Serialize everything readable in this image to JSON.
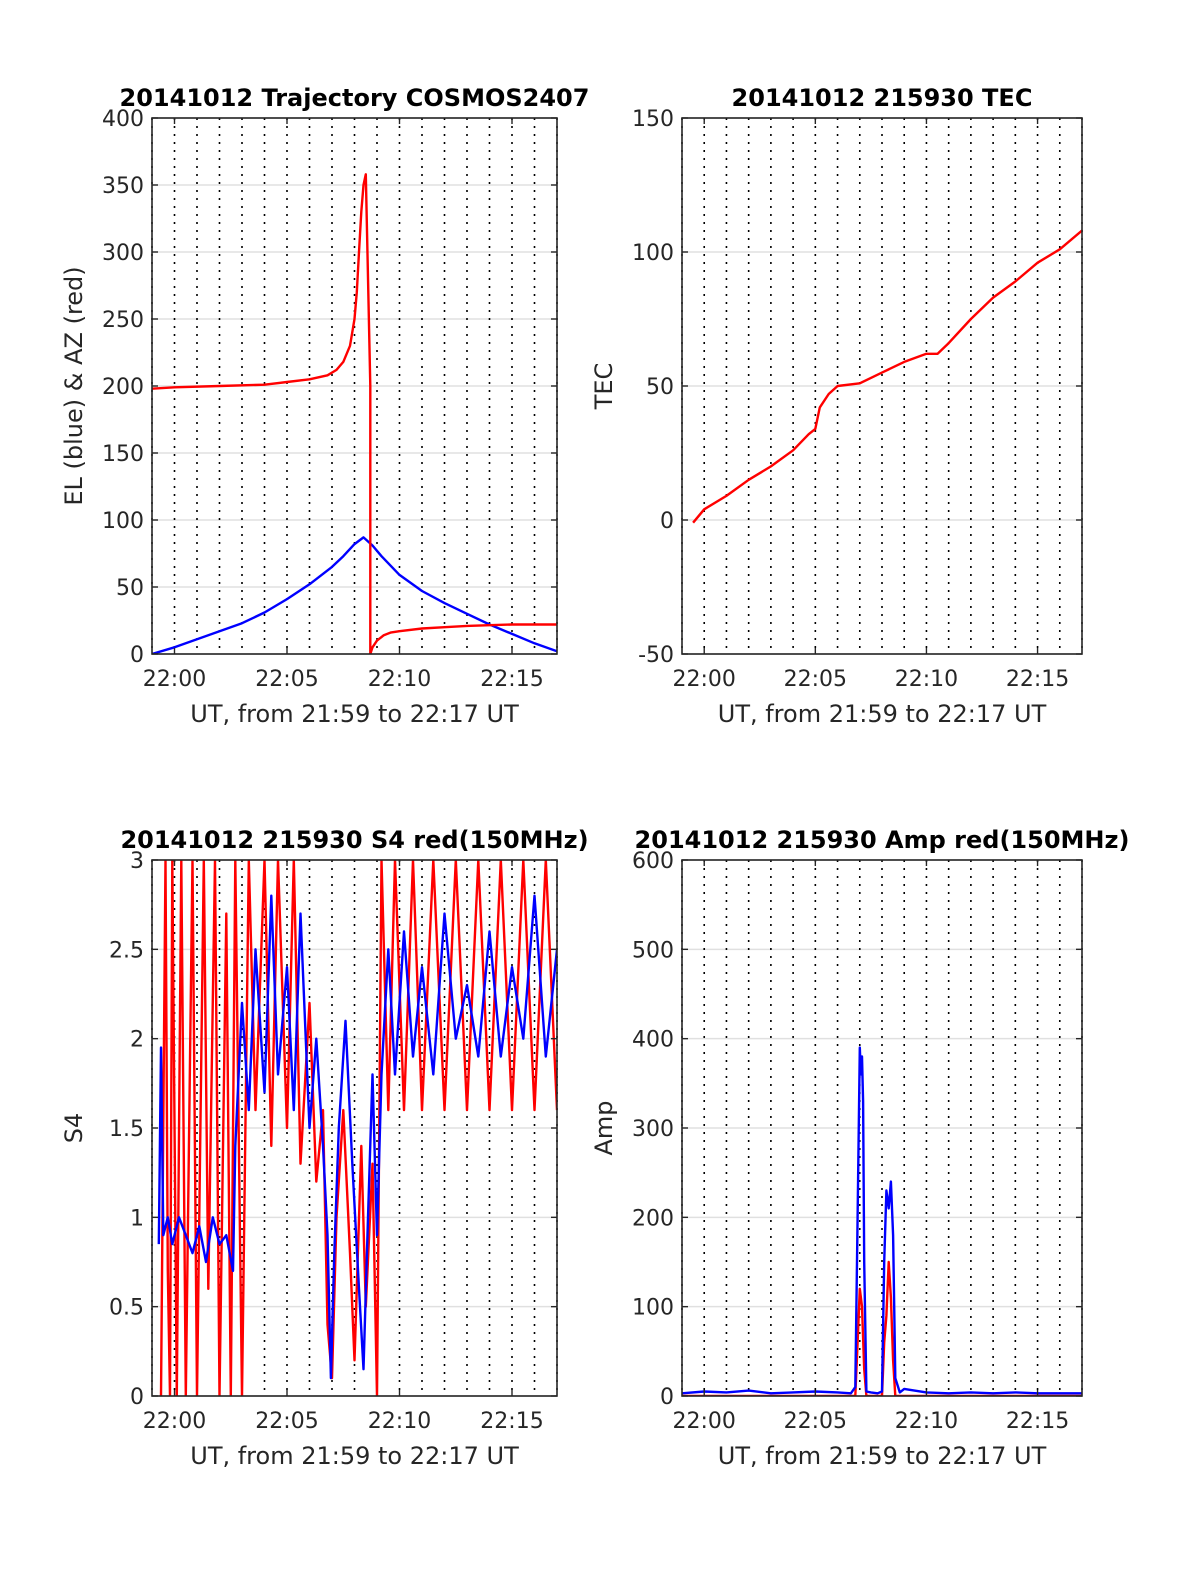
{
  "chart_data": [
    {
      "type": "line",
      "title": "20141012 Trajectory COSMOS2407",
      "xlabel": "UT, from 21:59 to 22:17 UT",
      "ylabel": "EL (blue) & AZ (red)",
      "x_unit": "minutes after 22:00 UT",
      "xlim": [
        -1,
        17
      ],
      "ylim": [
        0,
        400
      ],
      "x_tick_values": [
        0,
        5,
        10,
        15
      ],
      "x_tick_labels": [
        "22:00",
        "22:05",
        "22:10",
        "22:15"
      ],
      "y_ticks": [
        0,
        50,
        100,
        150,
        200,
        250,
        300,
        350,
        400
      ],
      "grid": true,
      "series": [
        {
          "color": "#0000ff",
          "x": [
            -1,
            0,
            1,
            2,
            3,
            4,
            5,
            6,
            7,
            7.5,
            8,
            8.4,
            8.8,
            9.2,
            9.6,
            10,
            11,
            12,
            13,
            14,
            15,
            16,
            17
          ],
          "y": [
            0,
            5,
            11,
            17,
            23,
            31,
            41,
            52,
            65,
            73,
            82,
            87,
            81,
            73,
            66,
            59,
            47,
            38,
            30,
            22,
            15,
            8,
            2
          ]
        },
        {
          "color": "#ff0000",
          "x": [
            -1,
            0,
            2,
            4,
            5,
            6,
            6.8,
            7.2,
            7.5,
            7.8,
            8.0,
            8.1,
            8.2,
            8.3,
            8.4,
            8.5,
            8.7,
            8.7,
            8.8,
            9.0,
            9.3,
            9.6,
            10,
            11,
            12,
            13,
            14,
            15,
            16,
            17
          ],
          "y": [
            198,
            199,
            200,
            201,
            203,
            205,
            208,
            212,
            218,
            230,
            250,
            270,
            300,
            330,
            350,
            358,
            200,
            0,
            5,
            10,
            14,
            16,
            17,
            19,
            20,
            21,
            21.5,
            22,
            22,
            22
          ]
        }
      ]
    },
    {
      "type": "line",
      "title": "20141012 215930 TEC",
      "xlabel": "UT, from 21:59 to 22:17 UT",
      "ylabel": "TEC",
      "x_unit": "minutes after 22:00 UT",
      "xlim": [
        -1,
        17
      ],
      "ylim": [
        -50,
        150
      ],
      "x_tick_values": [
        0,
        5,
        10,
        15
      ],
      "x_tick_labels": [
        "22:00",
        "22:05",
        "22:10",
        "22:15"
      ],
      "y_ticks": [
        -50,
        0,
        50,
        100,
        150
      ],
      "grid": true,
      "series": [
        {
          "color": "#ff0000",
          "x": [
            -0.5,
            0,
            1,
            2,
            3,
            4,
            4.7,
            5.0,
            5.2,
            5.6,
            6.0,
            7,
            8,
            9,
            10,
            10.5,
            11,
            12,
            13,
            14,
            15,
            16,
            17
          ],
          "y": [
            -1,
            4,
            9,
            15,
            20,
            26,
            32,
            34,
            42,
            47,
            50,
            51,
            55,
            59,
            62,
            62,
            66,
            75,
            83,
            89,
            96,
            101,
            108
          ]
        }
      ]
    },
    {
      "type": "line",
      "title": "20141012 215930 S4 red(150MHz)",
      "xlabel": "UT, from 21:59 to 22:17 UT",
      "ylabel": "S4",
      "x_unit": "minutes after 22:00 UT",
      "xlim": [
        -1,
        17
      ],
      "ylim": [
        0,
        3
      ],
      "x_tick_values": [
        0,
        5,
        10,
        15
      ],
      "x_tick_labels": [
        "22:00",
        "22:05",
        "22:10",
        "22:15"
      ],
      "y_ticks": [
        0,
        0.5,
        1,
        1.5,
        2,
        2.5,
        3
      ],
      "grid": true,
      "series": [
        {
          "color": "#ff0000",
          "x": [
            -0.6,
            -0.4,
            -0.3,
            -0.2,
            -0.1,
            0.1,
            0.3,
            0.5,
            0.8,
            1.0,
            1.3,
            1.5,
            1.8,
            2.0,
            2.3,
            2.5,
            2.7,
            3.0,
            3.3,
            3.6,
            4.0,
            4.3,
            4.6,
            5.0,
            5.3,
            5.6,
            6.0,
            6.3,
            6.6,
            6.8,
            7.0,
            7.2,
            7.5,
            7.8,
            8.0,
            8.3,
            8.5,
            8.8,
            9.0,
            9.2,
            9.5,
            9.8,
            10.2,
            10.6,
            11.0,
            11.5,
            12.0,
            12.5,
            13.0,
            13.5,
            14.0,
            14.5,
            15.0,
            15.5,
            16.0,
            16.5,
            17.0
          ],
          "y": [
            0,
            3,
            0.7,
            0,
            3,
            0,
            3,
            0,
            3,
            0,
            3,
            0.6,
            3,
            0,
            2.7,
            0,
            3,
            0,
            3,
            1.6,
            3,
            1.4,
            3,
            1.5,
            3,
            1.3,
            2.2,
            1.2,
            1.6,
            0.4,
            0.1,
            1.0,
            1.6,
            0.8,
            0.2,
            1.4,
            0.5,
            1.3,
            0,
            3,
            1.6,
            3,
            1.6,
            3,
            1.6,
            3,
            1.6,
            3,
            1.6,
            3,
            1.6,
            3,
            1.6,
            3,
            1.6,
            3,
            1.6
          ]
        },
        {
          "color": "#0000ff",
          "x": [
            -0.7,
            -0.6,
            -0.5,
            -0.3,
            -0.1,
            0.2,
            0.5,
            0.8,
            1.1,
            1.4,
            1.7,
            2.0,
            2.3,
            2.6,
            2.7,
            3.0,
            3.3,
            3.6,
            4.0,
            4.3,
            4.6,
            5.0,
            5.3,
            5.6,
            6.0,
            6.3,
            6.6,
            6.8,
            6.95,
            7.1,
            7.3,
            7.6,
            7.9,
            8.2,
            8.4,
            8.6,
            8.8,
            9.0,
            9.2,
            9.5,
            9.8,
            10.2,
            10.6,
            11.0,
            11.5,
            12.0,
            12.5,
            13.0,
            13.5,
            14.0,
            14.5,
            15.0,
            15.5,
            16.0,
            16.5,
            17.0
          ],
          "y": [
            0.85,
            1.95,
            0.9,
            1.0,
            0.85,
            1.0,
            0.9,
            0.8,
            0.95,
            0.75,
            1.0,
            0.85,
            0.9,
            0.7,
            1.4,
            2.2,
            1.6,
            2.5,
            1.7,
            2.8,
            1.8,
            2.4,
            1.6,
            2.7,
            1.5,
            2.0,
            1.4,
            0.9,
            0.1,
            0.8,
            1.5,
            2.1,
            1.3,
            0.6,
            0.15,
            1.0,
            1.8,
            0.9,
            1.8,
            2.5,
            1.8,
            2.6,
            1.9,
            2.4,
            1.8,
            2.7,
            2.0,
            2.3,
            1.9,
            2.6,
            1.9,
            2.4,
            2.0,
            2.8,
            1.9,
            2.5
          ]
        }
      ]
    },
    {
      "type": "line",
      "title": "20141012 215930 Amp red(150MHz)",
      "xlabel": "UT, from 21:59 to 22:17 UT",
      "ylabel": "Amp",
      "x_unit": "minutes after 22:00 UT",
      "xlim": [
        -1,
        17
      ],
      "ylim": [
        0,
        600
      ],
      "x_tick_values": [
        0,
        5,
        10,
        15
      ],
      "x_tick_labels": [
        "22:00",
        "22:05",
        "22:10",
        "22:15"
      ],
      "y_ticks": [
        0,
        100,
        200,
        300,
        400,
        500,
        600
      ],
      "grid": true,
      "series": [
        {
          "color": "#ff0000",
          "x": [
            -1,
            6.8,
            6.9,
            7.0,
            7.1,
            7.2,
            7.3,
            7.5,
            8.0,
            8.1,
            8.2,
            8.3,
            8.4,
            8.5,
            8.6,
            9.0,
            17
          ],
          "y": [
            0,
            0,
            60,
            120,
            100,
            30,
            0,
            0,
            0,
            60,
            90,
            150,
            110,
            40,
            0,
            0,
            0
          ]
        },
        {
          "color": "#0000ff",
          "x": [
            -1,
            0,
            1,
            2,
            3,
            4,
            5,
            6,
            6.6,
            6.8,
            6.9,
            7.0,
            7.05,
            7.1,
            7.15,
            7.2,
            7.3,
            7.5,
            7.8,
            8.0,
            8.1,
            8.2,
            8.3,
            8.4,
            8.5,
            8.6,
            8.8,
            9.0,
            10,
            11,
            12,
            13,
            14,
            15,
            16,
            17
          ],
          "y": [
            3,
            5,
            4,
            6,
            3,
            4,
            5,
            4,
            3,
            10,
            200,
            390,
            360,
            380,
            330,
            150,
            5,
            4,
            3,
            5,
            150,
            230,
            210,
            240,
            180,
            20,
            4,
            8,
            4,
            3,
            4,
            3,
            4,
            3,
            3,
            3
          ]
        }
      ]
    }
  ]
}
